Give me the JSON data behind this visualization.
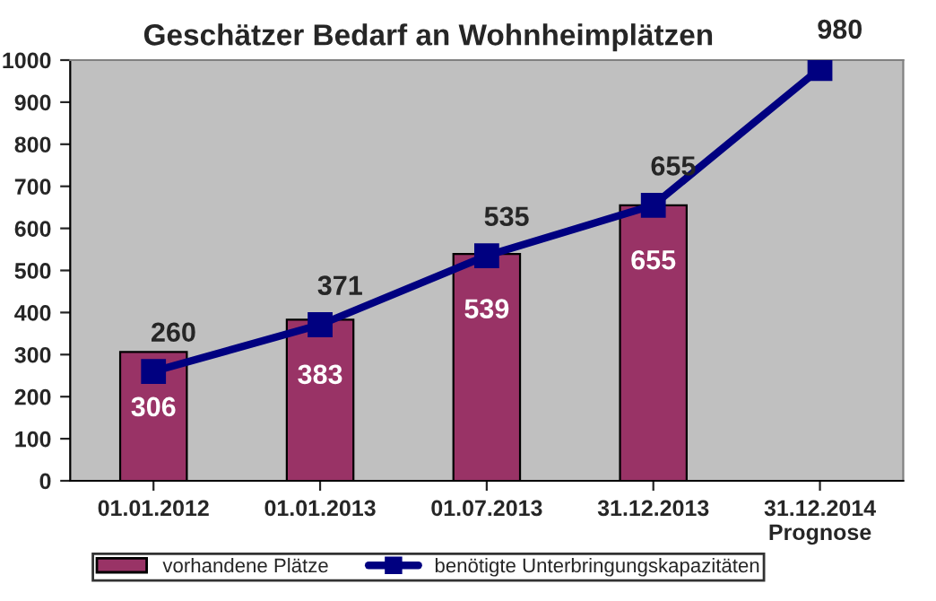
{
  "chart_data": {
    "type": "bar",
    "title": "Geschätzer Bedarf an Wohnheimplätzen",
    "categories": [
      "01.01.2012",
      "01.01.2013",
      "01.07.2013",
      "31.12.2013",
      "31.12.2014\nPrognose"
    ],
    "series": [
      {
        "name": "vorhandene Plätze",
        "color": "#993366",
        "values": [
          306,
          383,
          539,
          655,
          null
        ]
      },
      {
        "name": "benötigte Unterbringungskapazitäten",
        "type": "line",
        "color": "#000080",
        "values": [
          260,
          371,
          535,
          655,
          980
        ]
      }
    ],
    "ylim": [
      0,
      1000
    ],
    "yticks": [
      0,
      100,
      200,
      300,
      400,
      500,
      600,
      700,
      800,
      900,
      1000
    ],
    "data_labels": true,
    "legend": "bottom",
    "marker": "square",
    "line_style": "solid"
  }
}
